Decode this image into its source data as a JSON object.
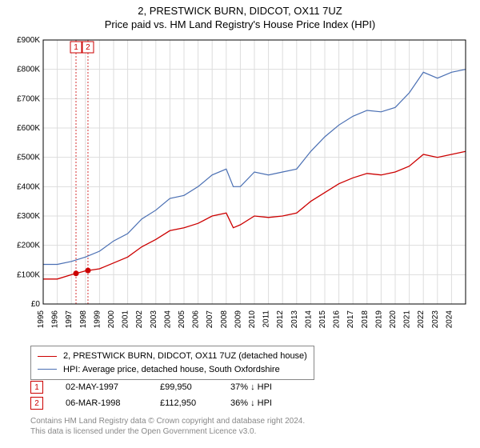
{
  "title": {
    "line1": "2, PRESTWICK BURN, DIDCOT, OX11 7UZ",
    "line2": "Price paid vs. HM Land Registry's House Price Index (HPI)",
    "fontsize": 13,
    "color": "#000000"
  },
  "chart": {
    "type": "line",
    "background_color": "#ffffff",
    "plot_border_color": "#000000",
    "grid_color": "#dddddd",
    "axis_label_fontsize": 10,
    "y_axis": {
      "min": 0,
      "max": 900000,
      "tick_step": 100000,
      "tick_labels": [
        "£0",
        "£100K",
        "£200K",
        "£300K",
        "£400K",
        "£500K",
        "£600K",
        "£700K",
        "£800K",
        "£900K"
      ]
    },
    "x_axis": {
      "min": 1995,
      "max": 2025,
      "tick_step": 1,
      "tick_labels": [
        "1995",
        "1996",
        "1997",
        "1998",
        "1999",
        "2000",
        "2001",
        "2002",
        "2003",
        "2004",
        "2005",
        "2006",
        "2007",
        "2008",
        "2009",
        "2010",
        "2011",
        "2012",
        "2013",
        "2014",
        "2015",
        "2016",
        "2017",
        "2018",
        "2019",
        "2020",
        "2021",
        "2022",
        "2023",
        "2024"
      ],
      "rotation": -90
    },
    "series": [
      {
        "name": "2, PRESTWICK BURN, DIDCOT, OX11 7UZ (detached house)",
        "color": "#cc0000",
        "line_width": 1.3,
        "data": [
          [
            1995,
            85000
          ],
          [
            1996,
            85000
          ],
          [
            1997,
            99950
          ],
          [
            1998,
            112950
          ],
          [
            1999,
            120000
          ],
          [
            2000,
            140000
          ],
          [
            2001,
            160000
          ],
          [
            2002,
            195000
          ],
          [
            2003,
            220000
          ],
          [
            2004,
            250000
          ],
          [
            2005,
            260000
          ],
          [
            2006,
            275000
          ],
          [
            2007,
            300000
          ],
          [
            2008,
            310000
          ],
          [
            2008.5,
            260000
          ],
          [
            2009,
            270000
          ],
          [
            2010,
            300000
          ],
          [
            2011,
            295000
          ],
          [
            2012,
            300000
          ],
          [
            2013,
            310000
          ],
          [
            2014,
            350000
          ],
          [
            2015,
            380000
          ],
          [
            2016,
            410000
          ],
          [
            2017,
            430000
          ],
          [
            2018,
            445000
          ],
          [
            2019,
            440000
          ],
          [
            2020,
            450000
          ],
          [
            2021,
            470000
          ],
          [
            2022,
            510000
          ],
          [
            2023,
            500000
          ],
          [
            2024,
            510000
          ],
          [
            2025,
            520000
          ]
        ]
      },
      {
        "name": "HPI: Average price, detached house, South Oxfordshire",
        "color": "#4a6fb3",
        "line_width": 1.2,
        "data": [
          [
            1995,
            135000
          ],
          [
            1996,
            135000
          ],
          [
            1997,
            145000
          ],
          [
            1998,
            160000
          ],
          [
            1999,
            180000
          ],
          [
            2000,
            215000
          ],
          [
            2001,
            240000
          ],
          [
            2002,
            290000
          ],
          [
            2003,
            320000
          ],
          [
            2004,
            360000
          ],
          [
            2005,
            370000
          ],
          [
            2006,
            400000
          ],
          [
            2007,
            440000
          ],
          [
            2008,
            460000
          ],
          [
            2008.5,
            400000
          ],
          [
            2009,
            400000
          ],
          [
            2010,
            450000
          ],
          [
            2011,
            440000
          ],
          [
            2012,
            450000
          ],
          [
            2013,
            460000
          ],
          [
            2014,
            520000
          ],
          [
            2015,
            570000
          ],
          [
            2016,
            610000
          ],
          [
            2017,
            640000
          ],
          [
            2018,
            660000
          ],
          [
            2019,
            655000
          ],
          [
            2020,
            670000
          ],
          [
            2021,
            720000
          ],
          [
            2022,
            790000
          ],
          [
            2023,
            770000
          ],
          [
            2024,
            790000
          ],
          [
            2025,
            800000
          ]
        ]
      }
    ],
    "sale_markers": [
      {
        "n": "1",
        "x": 1997.33,
        "dash_color": "#cc0000",
        "dot_color": "#cc0000"
      },
      {
        "n": "2",
        "x": 1998.18,
        "dash_color": "#cc0000",
        "dot_color": "#cc0000"
      }
    ]
  },
  "legend": {
    "border_color": "#888888",
    "fontsize": 11,
    "items": [
      {
        "color": "#cc0000",
        "label": "2, PRESTWICK BURN, DIDCOT, OX11 7UZ (detached house)"
      },
      {
        "color": "#4a6fb3",
        "label": "HPI: Average price, detached house, South Oxfordshire"
      }
    ]
  },
  "sales": [
    {
      "n": "1",
      "date": "02-MAY-1997",
      "price": "£99,950",
      "hpi": "37% ↓ HPI"
    },
    {
      "n": "2",
      "date": "06-MAR-1998",
      "price": "£112,950",
      "hpi": "36% ↓ HPI"
    }
  ],
  "attribution": {
    "line1": "Contains HM Land Registry data © Crown copyright and database right 2024.",
    "line2": "This data is licensed under the Open Government Licence v3.0.",
    "color": "#888888",
    "fontsize": 10
  }
}
